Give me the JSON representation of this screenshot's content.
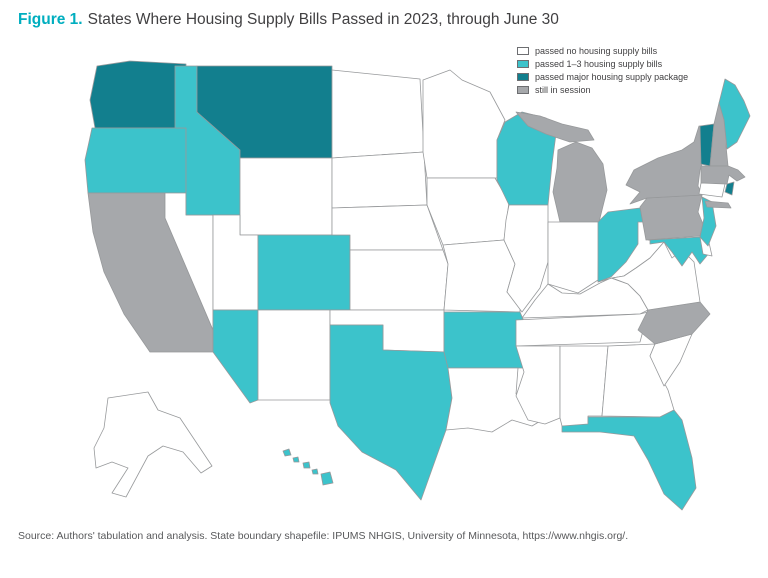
{
  "figure": {
    "label": "Figure 1.",
    "title": "States Where Housing Supply Bills Passed in 2023, through June 30"
  },
  "source": "Source: Authors' tabulation and analysis. State boundary shapefile: IPUMS NHGIS, University of Minnesota, https://www.nhgis.org/.",
  "chart_data": {
    "type": "choropleth",
    "title": "States Where Housing Supply Bills Passed in 2023, through June 30",
    "legend_position": "top-right",
    "categories": [
      {
        "key": "none",
        "label": "passed no housing supply bills",
        "color": "#ffffff"
      },
      {
        "key": "some",
        "label": "passed 1–3 housing supply bills",
        "color": "#3cc3cb"
      },
      {
        "key": "major",
        "label": "passed major housing supply package",
        "color": "#127f8e"
      },
      {
        "key": "session",
        "label": "still in session",
        "color": "#a6a8ab"
      }
    ],
    "state_status": {
      "AL": "none",
      "AK": "none",
      "AZ": "some",
      "AR": "some",
      "CA": "session",
      "CO": "some",
      "CT": "none",
      "DE": "none",
      "FL": "some",
      "GA": "none",
      "HI": "some",
      "ID": "some",
      "IL": "none",
      "IN": "none",
      "IA": "none",
      "KS": "none",
      "KY": "none",
      "LA": "none",
      "ME": "some",
      "MD": "some",
      "MA": "session",
      "MI": "session",
      "MN": "none",
      "MS": "none",
      "MO": "none",
      "MT": "major",
      "NE": "none",
      "NV": "none",
      "NH": "session",
      "NJ": "some",
      "NM": "none",
      "NY": "session",
      "NC": "session",
      "ND": "none",
      "OH": "some",
      "OK": "none",
      "OR": "some",
      "PA": "session",
      "RI": "major",
      "SC": "none",
      "SD": "none",
      "TN": "none",
      "TX": "some",
      "UT": "none",
      "VT": "major",
      "VA": "none",
      "WA": "major",
      "WV": "none",
      "WI": "some",
      "WY": "none"
    }
  }
}
